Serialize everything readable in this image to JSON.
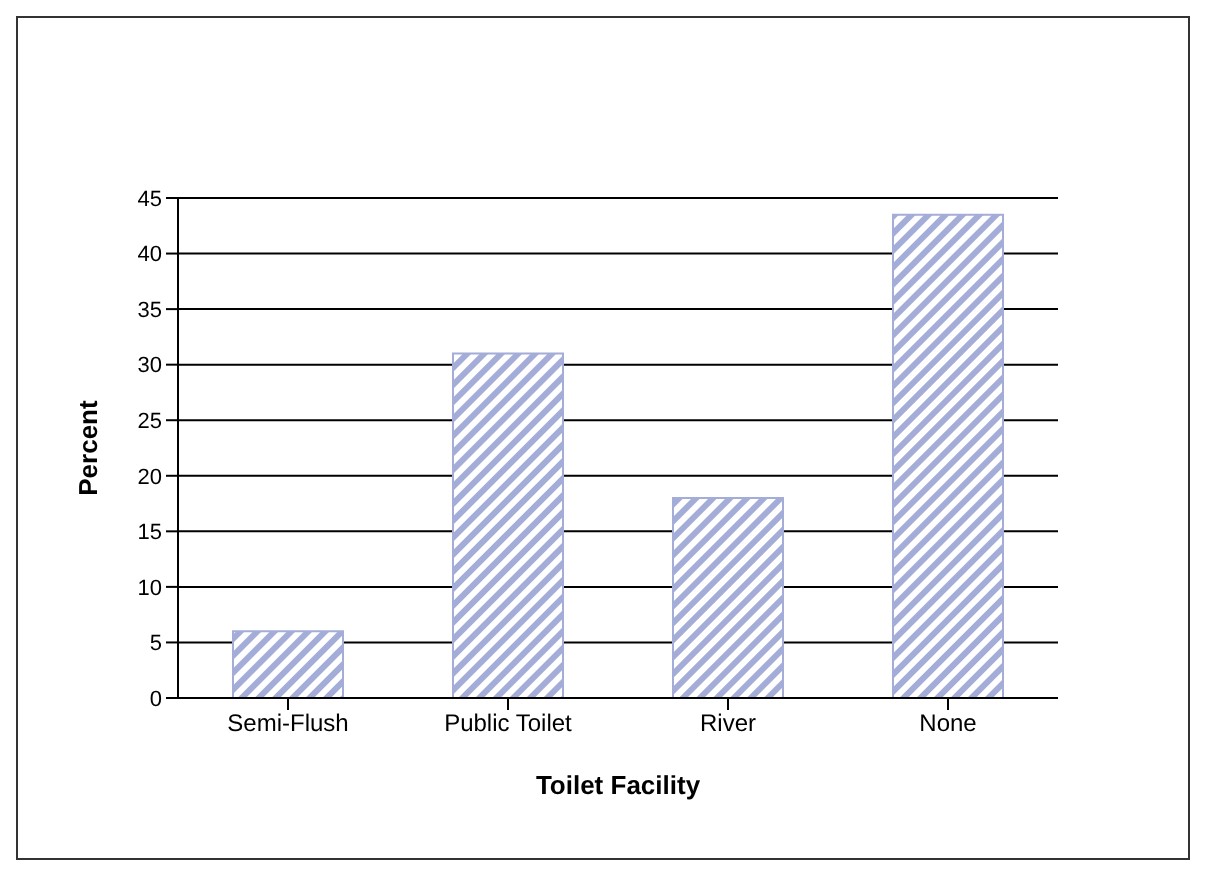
{
  "chart_data": {
    "type": "bar",
    "xlabel": "Toilet Facility",
    "ylabel": "Percent",
    "categories": [
      "Semi-Flush",
      "Public Toilet",
      "River",
      "None"
    ],
    "values": [
      6,
      31,
      18,
      43.5
    ],
    "color": "#a4acd8",
    "ylim": [
      0,
      45
    ],
    "yticks": [
      0,
      5,
      10,
      15,
      20,
      25,
      30,
      35,
      40,
      45
    ],
    "grid": "y"
  }
}
